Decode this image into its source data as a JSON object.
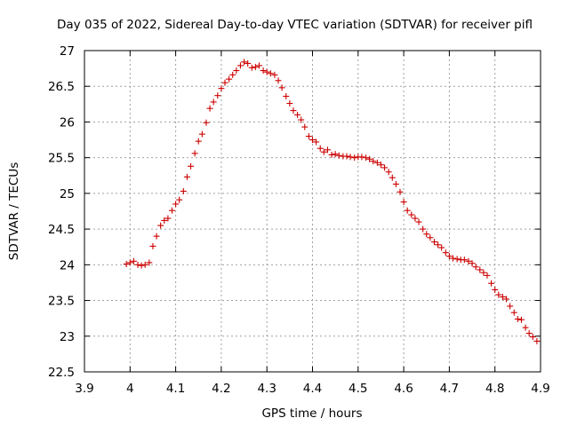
{
  "chart_data": {
    "type": "scatter",
    "title": "Day 035 of 2022, Sidereal Day-to-day VTEC variation (SDTVAR) for receiver pifl",
    "xlabel": "GPS time / hours",
    "ylabel": "SDTVAR / TECUs",
    "xlim": [
      3.9,
      4.9
    ],
    "ylim": [
      22.5,
      27
    ],
    "x_ticks": [
      "3.9",
      "4",
      "4.1",
      "4.2",
      "4.3",
      "4.4",
      "4.5",
      "4.6",
      "4.7",
      "4.8",
      "4.9"
    ],
    "y_ticks": [
      "22.5",
      "23",
      "23.5",
      "24",
      "24.5",
      "25",
      "25.5",
      "26",
      "26.5",
      "27"
    ],
    "grid": true,
    "series": [
      {
        "name": "SDTVAR",
        "color": "#cc0000",
        "marker": "plus",
        "points": [
          [
            3.992,
            24.01
          ],
          [
            4.0,
            24.03
          ],
          [
            4.008,
            24.05
          ],
          [
            4.017,
            24.0
          ],
          [
            4.025,
            23.99
          ],
          [
            4.033,
            24.0
          ],
          [
            4.042,
            24.03
          ],
          [
            4.05,
            24.26
          ],
          [
            4.058,
            24.4
          ],
          [
            4.067,
            24.55
          ],
          [
            4.075,
            24.62
          ],
          [
            4.083,
            24.65
          ],
          [
            4.092,
            24.76
          ],
          [
            4.1,
            24.85
          ],
          [
            4.108,
            24.91
          ],
          [
            4.117,
            25.03
          ],
          [
            4.125,
            25.23
          ],
          [
            4.133,
            25.38
          ],
          [
            4.142,
            25.56
          ],
          [
            4.15,
            25.73
          ],
          [
            4.158,
            25.83
          ],
          [
            4.167,
            25.99
          ],
          [
            4.175,
            26.19
          ],
          [
            4.183,
            26.28
          ],
          [
            4.192,
            26.37
          ],
          [
            4.2,
            26.47
          ],
          [
            4.208,
            26.55
          ],
          [
            4.217,
            26.6
          ],
          [
            4.225,
            26.66
          ],
          [
            4.233,
            26.72
          ],
          [
            4.242,
            26.79
          ],
          [
            4.25,
            26.84
          ],
          [
            4.258,
            26.82
          ],
          [
            4.267,
            26.76
          ],
          [
            4.275,
            26.77
          ],
          [
            4.283,
            26.79
          ],
          [
            4.292,
            26.72
          ],
          [
            4.3,
            26.7
          ],
          [
            4.308,
            26.68
          ],
          [
            4.317,
            26.66
          ],
          [
            4.325,
            26.58
          ],
          [
            4.333,
            26.48
          ],
          [
            4.342,
            26.36
          ],
          [
            4.35,
            26.26
          ],
          [
            4.358,
            26.16
          ],
          [
            4.367,
            26.1
          ],
          [
            4.375,
            26.03
          ],
          [
            4.383,
            25.93
          ],
          [
            4.392,
            25.8
          ],
          [
            4.4,
            25.75
          ],
          [
            4.408,
            25.72
          ],
          [
            4.417,
            25.63
          ],
          [
            4.425,
            25.58
          ],
          [
            4.433,
            25.61
          ],
          [
            4.442,
            25.54
          ],
          [
            4.45,
            25.55
          ],
          [
            4.458,
            25.53
          ],
          [
            4.467,
            25.52
          ],
          [
            4.475,
            25.52
          ],
          [
            4.483,
            25.51
          ],
          [
            4.492,
            25.5
          ],
          [
            4.5,
            25.51
          ],
          [
            4.508,
            25.51
          ],
          [
            4.517,
            25.5
          ],
          [
            4.525,
            25.48
          ],
          [
            4.533,
            25.45
          ],
          [
            4.542,
            25.43
          ],
          [
            4.55,
            25.4
          ],
          [
            4.558,
            25.36
          ],
          [
            4.567,
            25.3
          ],
          [
            4.575,
            25.22
          ],
          [
            4.583,
            25.13
          ],
          [
            4.592,
            25.02
          ],
          [
            4.6,
            24.88
          ],
          [
            4.608,
            24.76
          ],
          [
            4.617,
            24.7
          ],
          [
            4.625,
            24.65
          ],
          [
            4.633,
            24.6
          ],
          [
            4.642,
            24.5
          ],
          [
            4.65,
            24.43
          ],
          [
            4.658,
            24.38
          ],
          [
            4.667,
            24.32
          ],
          [
            4.675,
            24.28
          ],
          [
            4.683,
            24.24
          ],
          [
            4.692,
            24.17
          ],
          [
            4.7,
            24.12
          ],
          [
            4.708,
            24.09
          ],
          [
            4.717,
            24.08
          ],
          [
            4.725,
            24.07
          ],
          [
            4.733,
            24.07
          ],
          [
            4.742,
            24.05
          ],
          [
            4.75,
            24.02
          ],
          [
            4.758,
            23.97
          ],
          [
            4.767,
            23.93
          ],
          [
            4.775,
            23.89
          ],
          [
            4.783,
            23.85
          ],
          [
            4.792,
            23.74
          ],
          [
            4.8,
            23.65
          ],
          [
            4.808,
            23.58
          ],
          [
            4.817,
            23.55
          ],
          [
            4.825,
            23.52
          ],
          [
            4.833,
            23.42
          ],
          [
            4.842,
            23.33
          ],
          [
            4.85,
            23.24
          ],
          [
            4.858,
            23.23
          ],
          [
            4.867,
            23.12
          ],
          [
            4.875,
            23.04
          ],
          [
            4.883,
            22.99
          ],
          [
            4.892,
            22.93
          ]
        ]
      }
    ]
  }
}
